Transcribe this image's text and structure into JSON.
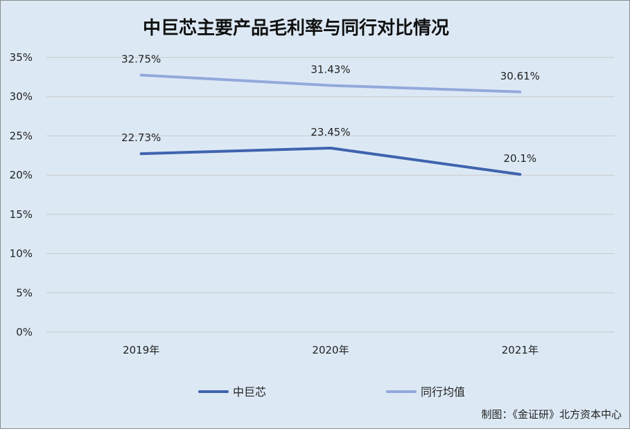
{
  "chart_data": {
    "type": "line",
    "title": "中巨芯主要产品毛利率与同行对比情况",
    "categories": [
      "2019年",
      "2020年",
      "2021年"
    ],
    "series": [
      {
        "name": "中巨芯",
        "values": [
          22.73,
          23.45,
          20.1
        ],
        "labels": [
          "22.73%",
          "23.45%",
          "20.1%"
        ],
        "color": "#3f63ad"
      },
      {
        "name": "同行均值",
        "values": [
          32.75,
          31.43,
          30.61
        ],
        "labels": [
          "32.75%",
          "31.43%",
          "30.61%"
        ],
        "color": "#93a9dc"
      }
    ],
    "ylim": [
      0,
      35
    ],
    "yticks": [
      0,
      5,
      10,
      15,
      20,
      25,
      30,
      35
    ],
    "ytick_labels": [
      "0%",
      "5%",
      "10%",
      "15%",
      "20%",
      "25%",
      "30%",
      "35%"
    ],
    "grid": true,
    "legend": "bottom"
  },
  "footer": "制图：《金证研》北方资本中心"
}
